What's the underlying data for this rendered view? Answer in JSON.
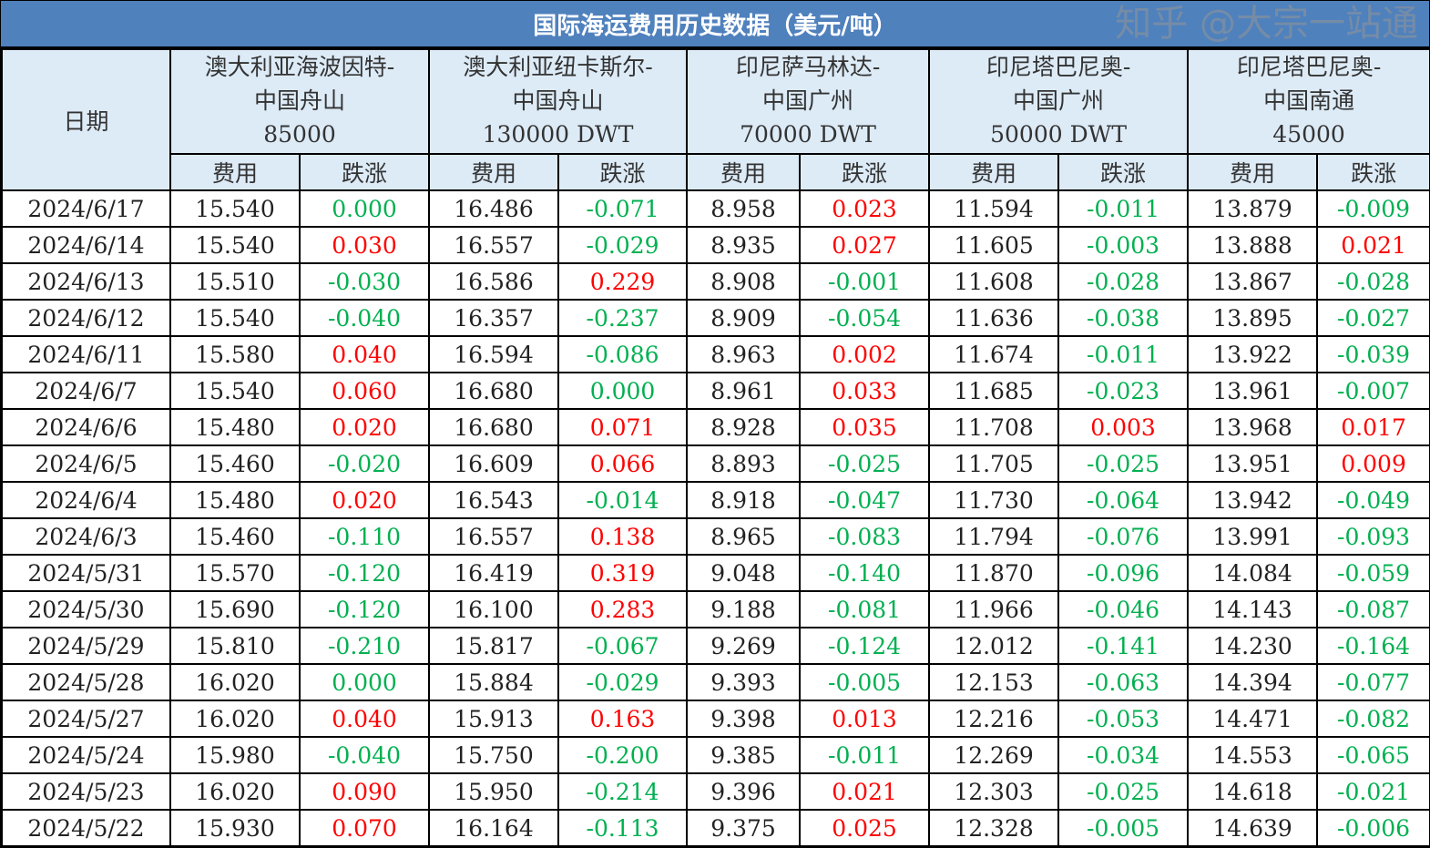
{
  "title": "国际海运费用历史数据（美元/吨）",
  "header": {
    "date_label": "日期",
    "cost_label": "费用",
    "change_label": "跌涨",
    "routes": [
      {
        "name": "澳大利亚海波因特-中国舟山",
        "size": "85000"
      },
      {
        "name": "澳大利亚纽卡斯尔-中国舟山",
        "size": "130000 DWT"
      },
      {
        "name": "印尼萨马林达-中国广州",
        "size": "70000 DWT"
      },
      {
        "name": "印尼塔巴尼奥-中国广州",
        "size": "50000 DWT"
      },
      {
        "name": "印尼塔巴尼奥-中国南通",
        "size": "45000"
      }
    ]
  },
  "colors": {
    "header_bg": "#4f81bd",
    "subheader_bg": "#ddebf7",
    "rise": "#ff0000",
    "fall": "#00b050"
  },
  "rows": [
    {
      "date": "2024/6/17",
      "v": [
        "15.540",
        "0.000",
        "16.486",
        "-0.071",
        "8.958",
        "0.023",
        "11.594",
        "-0.011",
        "13.879",
        "-0.009"
      ]
    },
    {
      "date": "2024/6/14",
      "v": [
        "15.540",
        "0.030",
        "16.557",
        "-0.029",
        "8.935",
        "0.027",
        "11.605",
        "-0.003",
        "13.888",
        "0.021"
      ]
    },
    {
      "date": "2024/6/13",
      "v": [
        "15.510",
        "-0.030",
        "16.586",
        "0.229",
        "8.908",
        "-0.001",
        "11.608",
        "-0.028",
        "13.867",
        "-0.028"
      ]
    },
    {
      "date": "2024/6/12",
      "v": [
        "15.540",
        "-0.040",
        "16.357",
        "-0.237",
        "8.909",
        "-0.054",
        "11.636",
        "-0.038",
        "13.895",
        "-0.027"
      ]
    },
    {
      "date": "2024/6/11",
      "v": [
        "15.580",
        "0.040",
        "16.594",
        "-0.086",
        "8.963",
        "0.002",
        "11.674",
        "-0.011",
        "13.922",
        "-0.039"
      ]
    },
    {
      "date": "2024/6/7",
      "v": [
        "15.540",
        "0.060",
        "16.680",
        "0.000",
        "8.961",
        "0.033",
        "11.685",
        "-0.023",
        "13.961",
        "-0.007"
      ]
    },
    {
      "date": "2024/6/6",
      "v": [
        "15.480",
        "0.020",
        "16.680",
        "0.071",
        "8.928",
        "0.035",
        "11.708",
        "0.003",
        "13.968",
        "0.017"
      ]
    },
    {
      "date": "2024/6/5",
      "v": [
        "15.460",
        "-0.020",
        "16.609",
        "0.066",
        "8.893",
        "-0.025",
        "11.705",
        "-0.025",
        "13.951",
        "0.009"
      ]
    },
    {
      "date": "2024/6/4",
      "v": [
        "15.480",
        "0.020",
        "16.543",
        "-0.014",
        "8.918",
        "-0.047",
        "11.730",
        "-0.064",
        "13.942",
        "-0.049"
      ]
    },
    {
      "date": "2024/6/3",
      "v": [
        "15.460",
        "-0.110",
        "16.557",
        "0.138",
        "8.965",
        "-0.083",
        "11.794",
        "-0.076",
        "13.991",
        "-0.093"
      ]
    },
    {
      "date": "2024/5/31",
      "v": [
        "15.570",
        "-0.120",
        "16.419",
        "0.319",
        "9.048",
        "-0.140",
        "11.870",
        "-0.096",
        "14.084",
        "-0.059"
      ]
    },
    {
      "date": "2024/5/30",
      "v": [
        "15.690",
        "-0.120",
        "16.100",
        "0.283",
        "9.188",
        "-0.081",
        "11.966",
        "-0.046",
        "14.143",
        "-0.087"
      ]
    },
    {
      "date": "2024/5/29",
      "v": [
        "15.810",
        "-0.210",
        "15.817",
        "-0.067",
        "9.269",
        "-0.124",
        "12.012",
        "-0.141",
        "14.230",
        "-0.164"
      ]
    },
    {
      "date": "2024/5/28",
      "v": [
        "16.020",
        "0.000",
        "15.884",
        "-0.029",
        "9.393",
        "-0.005",
        "12.153",
        "-0.063",
        "14.394",
        "-0.077"
      ]
    },
    {
      "date": "2024/5/27",
      "v": [
        "16.020",
        "0.040",
        "15.913",
        "0.163",
        "9.398",
        "0.013",
        "12.216",
        "-0.053",
        "14.471",
        "-0.082"
      ]
    },
    {
      "date": "2024/5/24",
      "v": [
        "15.980",
        "-0.040",
        "15.750",
        "-0.200",
        "9.385",
        "-0.011",
        "12.269",
        "-0.034",
        "14.553",
        "-0.065"
      ]
    },
    {
      "date": "2024/5/23",
      "v": [
        "16.020",
        "0.090",
        "15.950",
        "-0.214",
        "9.396",
        "0.021",
        "12.303",
        "-0.025",
        "14.618",
        "-0.021"
      ]
    },
    {
      "date": "2024/5/22",
      "v": [
        "15.930",
        "0.070",
        "16.164",
        "-0.113",
        "9.375",
        "0.025",
        "12.328",
        "-0.005",
        "14.639",
        "-0.006"
      ]
    }
  ],
  "watermark": "知乎 @大宗一站通"
}
